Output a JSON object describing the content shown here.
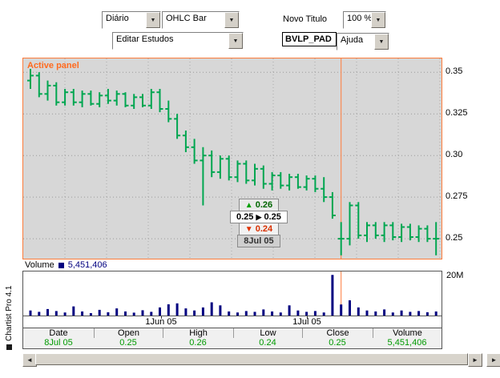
{
  "toolbar": {
    "period_value": "Diário",
    "chart_type_value": "OHLC Bar",
    "novo_titulo_label": "Novo Titulo",
    "zoom_value": "100 %",
    "estudos_value": "Editar Estudos",
    "symbol_value": "BVLP_PAD",
    "ajuda_value": "Ajuda"
  },
  "chart": {
    "active_panel_label": "Active panel",
    "y_ticks": [
      "0.35",
      "0.325",
      "0.30",
      "0.275",
      "0.25"
    ],
    "tooltip": {
      "high": "0.26",
      "open": "0.25",
      "close": "0.25",
      "low": "0.24",
      "date": "8Jul 05"
    }
  },
  "volume": {
    "label": "Volume",
    "value": "5,451,406",
    "max_label": "20M",
    "x_ticks": [
      "1Jun  05",
      "1Jul  05"
    ]
  },
  "table": {
    "headers": [
      "Date",
      "Open",
      "High",
      "Low",
      "Close",
      "Volume"
    ],
    "values": [
      "8Jul 05",
      "0.25",
      "0.26",
      "0.24",
      "0.25",
      "5,451,406"
    ]
  },
  "branding": "Chartist Pro 4.1",
  "colors": {
    "accent_orange": "#ff7b3a",
    "bar_green": "#00a650",
    "text_green": "#009a00",
    "volume_navy": "#000080",
    "chart_bg": "#d7d7d7"
  },
  "chart_data": {
    "type": "ohlc-bar",
    "title": "BVLP_PAD Diário",
    "ylim": [
      0.238,
      0.3583
    ],
    "y_grid": [
      0.35,
      0.325,
      0.3,
      0.275,
      0.25
    ],
    "crosshair_index": 36,
    "x_tick_indices": [
      15,
      32
    ],
    "x_tick_labels": [
      "1Jun 05",
      "1Jul 05"
    ],
    "selected": {
      "date": "8Jul 05",
      "open": 0.25,
      "high": 0.26,
      "low": 0.24,
      "close": 0.25,
      "volume": 5451406
    },
    "bars": [
      [
        0.345,
        0.352,
        0.34,
        0.348
      ],
      [
        0.348,
        0.35,
        0.335,
        0.337
      ],
      [
        0.337,
        0.345,
        0.333,
        0.342
      ],
      [
        0.342,
        0.344,
        0.33,
        0.332
      ],
      [
        0.332,
        0.34,
        0.33,
        0.338
      ],
      [
        0.338,
        0.34,
        0.33,
        0.332
      ],
      [
        0.332,
        0.339,
        0.329,
        0.337
      ],
      [
        0.337,
        0.339,
        0.33,
        0.331
      ],
      [
        0.331,
        0.338,
        0.329,
        0.336
      ],
      [
        0.336,
        0.34,
        0.331,
        0.333
      ],
      [
        0.333,
        0.339,
        0.33,
        0.337
      ],
      [
        0.337,
        0.338,
        0.329,
        0.33
      ],
      [
        0.33,
        0.337,
        0.328,
        0.335
      ],
      [
        0.335,
        0.337,
        0.329,
        0.33
      ],
      [
        0.33,
        0.34,
        0.328,
        0.338
      ],
      [
        0.338,
        0.34,
        0.326,
        0.328
      ],
      [
        0.328,
        0.333,
        0.32,
        0.322
      ],
      [
        0.322,
        0.325,
        0.31,
        0.312
      ],
      [
        0.312,
        0.315,
        0.302,
        0.305
      ],
      [
        0.305,
        0.31,
        0.295,
        0.297
      ],
      [
        0.297,
        0.305,
        0.27,
        0.3
      ],
      [
        0.3,
        0.303,
        0.287,
        0.29
      ],
      [
        0.29,
        0.3,
        0.286,
        0.298
      ],
      [
        0.298,
        0.3,
        0.285,
        0.287
      ],
      [
        0.287,
        0.297,
        0.284,
        0.295
      ],
      [
        0.295,
        0.297,
        0.283,
        0.285
      ],
      [
        0.285,
        0.295,
        0.282,
        0.292
      ],
      [
        0.292,
        0.294,
        0.28,
        0.283
      ],
      [
        0.283,
        0.29,
        0.279,
        0.288
      ],
      [
        0.288,
        0.29,
        0.28,
        0.282
      ],
      [
        0.282,
        0.289,
        0.279,
        0.287
      ],
      [
        0.287,
        0.289,
        0.28,
        0.281
      ],
      [
        0.281,
        0.288,
        0.279,
        0.286
      ],
      [
        0.286,
        0.288,
        0.278,
        0.28
      ],
      [
        0.28,
        0.287,
        0.272,
        0.275
      ],
      [
        0.275,
        0.278,
        0.262,
        0.264
      ],
      [
        0.25,
        0.26,
        0.24,
        0.25
      ],
      [
        0.25,
        0.272,
        0.246,
        0.27
      ],
      [
        0.27,
        0.272,
        0.25,
        0.252
      ],
      [
        0.252,
        0.26,
        0.248,
        0.258
      ],
      [
        0.258,
        0.26,
        0.25,
        0.252
      ],
      [
        0.252,
        0.26,
        0.248,
        0.258
      ],
      [
        0.258,
        0.26,
        0.249,
        0.251
      ],
      [
        0.251,
        0.259,
        0.248,
        0.257
      ],
      [
        0.257,
        0.259,
        0.249,
        0.251
      ],
      [
        0.251,
        0.258,
        0.248,
        0.256
      ],
      [
        0.256,
        0.258,
        0.248,
        0.25
      ],
      [
        0.25,
        0.26,
        0.24,
        0.25
      ]
    ],
    "volumes_millions": [
      2.5,
      1.8,
      3.2,
      2.2,
      1.5,
      4.5,
      2.0,
      1.2,
      2.8,
      1.6,
      3.5,
      2.0,
      1.4,
      2.6,
      1.8,
      4.0,
      5.5,
      6.0,
      3.5,
      2.5,
      4.0,
      6.5,
      5.0,
      2.0,
      1.5,
      2.2,
      1.8,
      3.0,
      2.0,
      1.5,
      5.0,
      2.5,
      1.8,
      2.2,
      1.5,
      20.0,
      5.45,
      7.5,
      4.0,
      2.5,
      2.0,
      3.0,
      1.5,
      2.5,
      1.8,
      2.2,
      1.6,
      2.0
    ],
    "volume_max": 20.5
  }
}
